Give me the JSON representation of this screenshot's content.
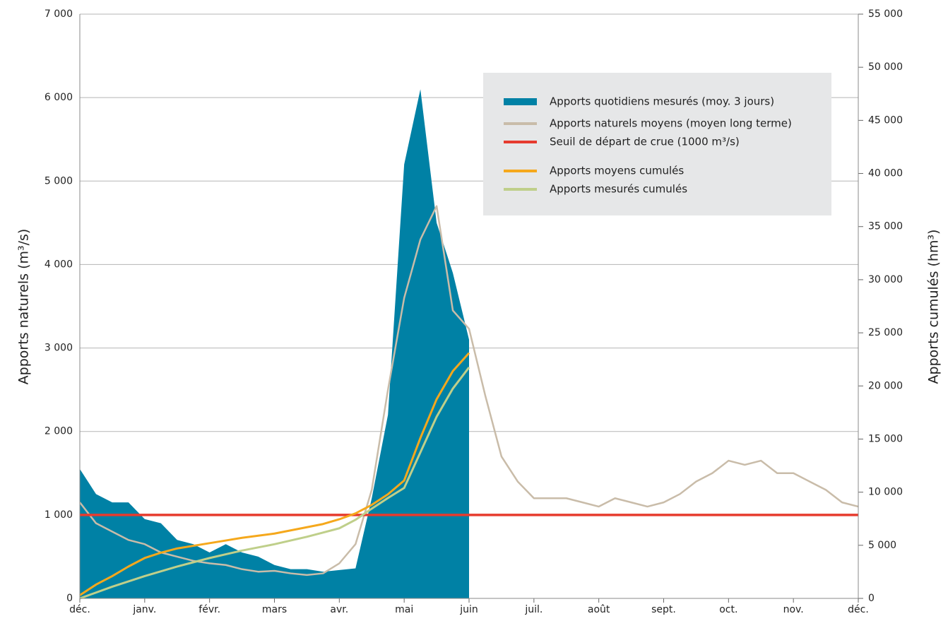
{
  "chart_data": {
    "type": "area-line",
    "x": [
      "déc.",
      null,
      null,
      null,
      "janv.",
      null,
      null,
      null,
      "févr.",
      null,
      null,
      null,
      "mars",
      null,
      null,
      null,
      "avr.",
      null,
      null,
      null,
      "mai",
      null,
      null,
      null,
      "juin",
      null,
      null,
      null,
      "juil.",
      null,
      null,
      null,
      "août",
      null,
      null,
      null,
      "sept.",
      null,
      null,
      null,
      "oct.",
      null,
      null,
      null,
      "nov.",
      null,
      null,
      null,
      "déc."
    ],
    "ylabel": "Apports naturels (m³/s)",
    "y2label": "Apports cumulés (hm³)",
    "ylim": [
      0,
      7000
    ],
    "yticks": [
      0,
      {
        "value": 1000,
        "label": "1 000"
      },
      {
        "value": 2000,
        "label": "2 000"
      },
      {
        "value": 3000,
        "label": "3 000"
      },
      {
        "value": 4000,
        "label": "4 000"
      },
      {
        "value": 5000,
        "label": "5 000"
      },
      {
        "value": 6000,
        "label": "6 000"
      },
      {
        "value": 7000,
        "label": "7 000"
      }
    ],
    "y2lim": [
      0,
      55000
    ],
    "y2ticks": [
      0,
      {
        "value": 5000,
        "label": "5 000"
      },
      {
        "value": 10000,
        "label": "10 000"
      },
      {
        "value": 15000,
        "label": "15 000"
      },
      {
        "value": 20000,
        "label": "20 000"
      },
      {
        "value": 25000,
        "label": "25 000"
      },
      {
        "value": 30000,
        "label": "30 000"
      },
      {
        "value": 35000,
        "label": "35 000"
      },
      {
        "value": 40000,
        "label": "40 000"
      },
      {
        "value": 45000,
        "label": "45 000"
      },
      {
        "value": 50000,
        "label": "50 000"
      },
      {
        "value": 55000,
        "label": "55 000"
      }
    ],
    "grid": true,
    "series": [
      {
        "name": "Apports quotidiens mesurés (moy. 3 jours)",
        "kind": "area",
        "color": "#0081a5",
        "values": [
          1550,
          1250,
          1150,
          1150,
          950,
          900,
          700,
          650,
          550,
          650,
          550,
          500,
          400,
          350,
          350,
          320,
          340,
          360,
          1200,
          2200,
          5200,
          6100,
          4500,
          3900,
          3100,
          null,
          null,
          null,
          null,
          null,
          null,
          null,
          null,
          null,
          null,
          null,
          null,
          null,
          null,
          null,
          null,
          null,
          null,
          null,
          null,
          null,
          null,
          null,
          null
        ]
      },
      {
        "name": "Apports naturels moyens (moyen long terme)",
        "kind": "line",
        "color": "#c9bca9",
        "values": [
          1150,
          900,
          800,
          700,
          650,
          550,
          500,
          450,
          420,
          400,
          350,
          320,
          330,
          300,
          280,
          300,
          420,
          650,
          1300,
          2500,
          3600,
          4300,
          4700,
          3450,
          3230,
          2430,
          1700,
          1400,
          1200,
          1200,
          1200,
          1150,
          1100,
          1200,
          1150,
          1100,
          1150,
          1250,
          1400,
          1500,
          1650,
          1600,
          1650,
          1500,
          1500,
          1400,
          1300,
          1150,
          1100
        ]
      },
      {
        "name": "Seuil de départ de crue (1000 m³/s)",
        "kind": "hline",
        "color": "#e63b2e",
        "value": 1000
      },
      {
        "name": "Apports moyens cumulés",
        "kind": "line",
        "axis": "y2",
        "color": "#f5a81c",
        "values": [
          300,
          1300,
          2100,
          3000,
          3800,
          4300,
          4700,
          4950,
          5200,
          5450,
          5700,
          5900,
          6100,
          6400,
          6700,
          7000,
          7450,
          8000,
          8800,
          9800,
          11100,
          15100,
          18750,
          21400,
          23100,
          null,
          null,
          null,
          null,
          null,
          null,
          null,
          null,
          null,
          null,
          null,
          null,
          null,
          null,
          null,
          null,
          null,
          null,
          null,
          null,
          null,
          null,
          null,
          null
        ]
      },
      {
        "name": "Apports mesurés cumulés",
        "kind": "line",
        "axis": "y2",
        "color": "#bfcf8a",
        "values": [
          0,
          550,
          1100,
          1600,
          2100,
          2550,
          3000,
          3400,
          3800,
          4150,
          4500,
          4800,
          5100,
          5450,
          5800,
          6200,
          6600,
          7400,
          8450,
          9450,
          10400,
          13750,
          17100,
          19750,
          21750,
          null,
          null,
          null,
          null,
          null,
          null,
          null,
          null,
          null,
          null,
          null,
          null,
          null,
          null,
          null,
          null,
          null,
          null,
          null,
          null,
          null,
          null,
          null,
          null
        ]
      }
    ]
  }
}
